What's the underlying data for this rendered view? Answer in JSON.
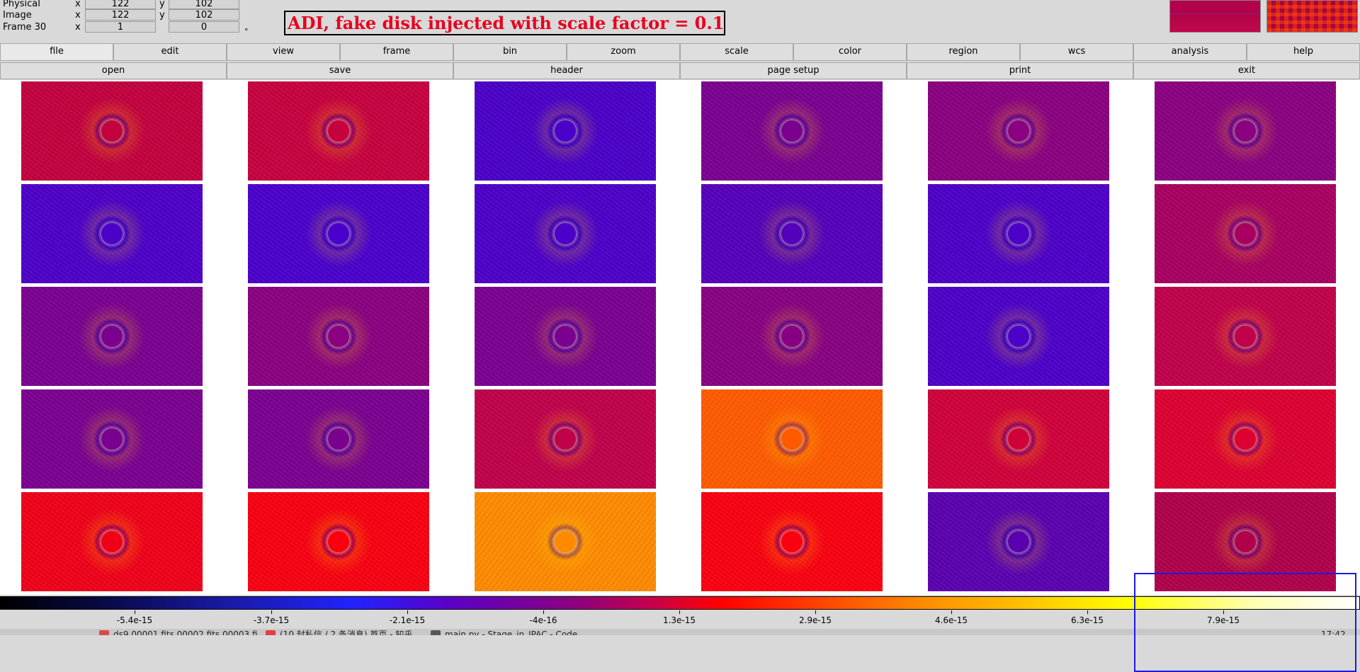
{
  "info": {
    "rows": [
      {
        "label": "Physical",
        "x_axis": "x",
        "x": "122",
        "y_axis": "y",
        "y": "102"
      },
      {
        "label": "Image",
        "x_axis": "x",
        "x": "122",
        "y_axis": "y",
        "y": "102"
      },
      {
        "label": "Frame 30",
        "x_axis": "x",
        "x": "1",
        "y_axis": "",
        "y": "0"
      }
    ],
    "degree": "°",
    "title": "ADI, fake disk injected with scale factor = 0.1"
  },
  "menubar": [
    "file",
    "edit",
    "view",
    "frame",
    "bin",
    "zoom",
    "scale",
    "color",
    "region",
    "wcs",
    "analysis",
    "help"
  ],
  "active_menu": "file",
  "buttonbar": [
    "open",
    "save",
    "header",
    "page setup",
    "print",
    "exit"
  ],
  "frames": [
    [
      "#c3003e",
      "#c7003e",
      "#4a00c8",
      "#7a0090",
      "#8a0080",
      "#8a0080"
    ],
    [
      "#4d00c8",
      "#4a00cc",
      "#4d00c8",
      "#5500bb",
      "#4d00c8",
      "#a80060"
    ],
    [
      "#7a0090",
      "#8a0080",
      "#7a0090",
      "#880082",
      "#4d00c8",
      "#c0004a"
    ],
    [
      "#7a0090",
      "#7a0090",
      "#c0004a",
      "#ff5a00",
      "#d0003a",
      "#dd0030"
    ],
    [
      "#f00018",
      "#f80010",
      "#ff8a00",
      "#fa0010",
      "#5a00b0",
      "#b0004a"
    ]
  ],
  "colorbar": {
    "ticks": [
      "-5.4e-15",
      "-3.7e-15",
      "-2.1e-15",
      "-4e-16",
      "1.3e-15",
      "2.9e-15",
      "4.6e-15",
      "6.3e-15",
      "7.9e-15"
    ]
  },
  "taskbar": {
    "items": [
      "ds9 00001.fits 00002.fits 00003.fi...",
      "(10 封私信 / 2 条消息) 首页 - 知乎",
      "main.py - Stage_in_IPAC - Code"
    ],
    "clock": "17:42"
  }
}
